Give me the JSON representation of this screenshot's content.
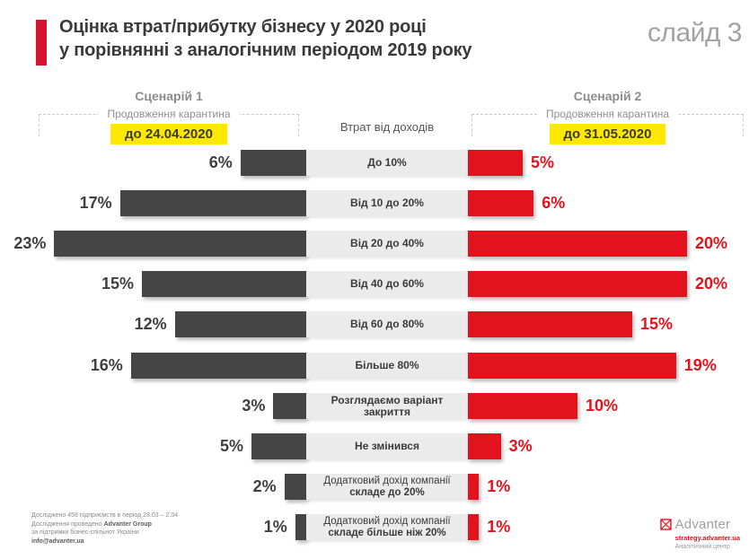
{
  "header": {
    "title_line1": "Оцінка втрат/прибутку бізнесу у 2020 році",
    "title_line2": "у порівнянні з аналогічним періодом 2019 року",
    "slide_label": "слайд 3"
  },
  "scenario1": {
    "name": "Сценарій 1",
    "subtitle": "Продовження карантина",
    "date": "до 24.04.2020"
  },
  "scenario2": {
    "name": "Сценарій 2",
    "subtitle": "Продовження карантина",
    "date": "до 31.05.2020"
  },
  "center_header": "Втрат від доходів",
  "chart_data": {
    "type": "bar",
    "layout": "diverging-horizontal",
    "title": "Оцінка втрат/прибутку бізнесу у 2020 році у порівнянні з аналогічним періодом 2019 року",
    "unit": "%",
    "value_axis_max": 23,
    "grid": false,
    "legend_position": "top scenario headers",
    "series": [
      {
        "name": "Сценарій 1 — Продовження карантина до 24.04.2020",
        "side": "left",
        "color": "#454545"
      },
      {
        "name": "Сценарій 2 — Продовження карантина до 31.05.2020",
        "side": "right",
        "color": "#e2131c"
      }
    ],
    "rows": [
      {
        "category": [
          "До 10%"
        ],
        "scenario1": 6,
        "scenario2": 5
      },
      {
        "category": [
          "Від 10 до 20%"
        ],
        "scenario1": 17,
        "scenario2": 6
      },
      {
        "category": [
          "Від 20 до 40%"
        ],
        "scenario1": 23,
        "scenario2": 20
      },
      {
        "category": [
          "Від 40 до 60%"
        ],
        "scenario1": 15,
        "scenario2": 20
      },
      {
        "category": [
          "Від 60 до 80%"
        ],
        "scenario1": 12,
        "scenario2": 15
      },
      {
        "category": [
          "Більше 80%"
        ],
        "scenario1": 16,
        "scenario2": 19
      },
      {
        "category": [
          "Розглядаємо варіант закриття"
        ],
        "scenario1": 3,
        "scenario2": 10
      },
      {
        "category": [
          "Не змінився"
        ],
        "scenario1": 5,
        "scenario2": 3
      },
      {
        "category": [
          "Додатковий дохід компанії",
          "складе до 20%"
        ],
        "scenario1": 2,
        "scenario2": 1
      },
      {
        "category": [
          "Додатковий дохід компанії",
          "складе більше ніж 20%"
        ],
        "scenario1": 1,
        "scenario2": 1
      }
    ]
  },
  "footer_left": {
    "line1": "Досліджено 458 підприємств в період 28.03 – 2.04",
    "line2_prefix": "Дослідження проведено ",
    "line2_bold": "Advanter Group",
    "line3": "за підтримки бізнес-спільнот України",
    "line4": "info@advanter.ua"
  },
  "footer_right": {
    "brand": "Advanter",
    "link": "strategy.advanter.ua",
    "subtitle": "Аналітичний центр"
  },
  "colors": {
    "accent_red": "#d8132f",
    "bar_dark": "#454545",
    "bar_red": "#e2131c",
    "highlight_yellow": "#ffe800",
    "strip_gray": "#ebebeb"
  }
}
